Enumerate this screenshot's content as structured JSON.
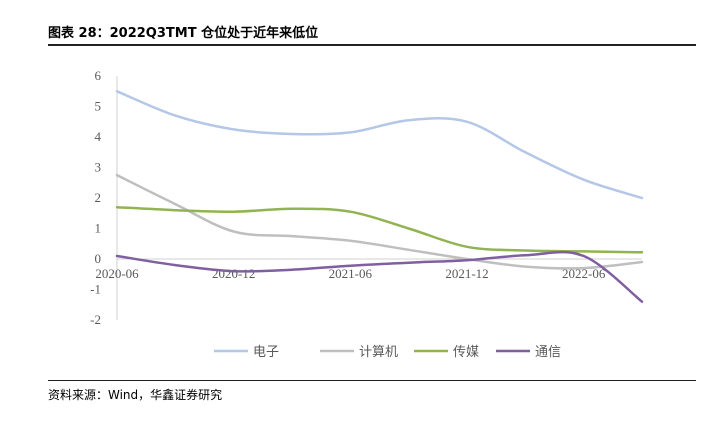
{
  "header": {
    "title": "图表 28：2022Q3TMT 仓位处于近年来低位"
  },
  "footer": {
    "source": "资料来源：Wind，华鑫证券研究"
  },
  "chart_data": {
    "type": "line",
    "title": "图表 28：2022Q3TMT 仓位处于近年来低位",
    "xlabel": "",
    "ylabel": "",
    "x": [
      "2020-06",
      "2020-09",
      "2020-12",
      "2021-03",
      "2021-06",
      "2021-09",
      "2021-12",
      "2022-03",
      "2022-06",
      "2022-09"
    ],
    "x_tick_labels": [
      "2020-06",
      "2020-12",
      "2021-06",
      "2021-12",
      "2022-06"
    ],
    "y_ticks": [
      "6",
      "5",
      "4",
      "3",
      "2",
      "1",
      "0",
      "-1",
      "-2"
    ],
    "ylim": [
      -2,
      6
    ],
    "grid": false,
    "legend_position": "bottom",
    "series": [
      {
        "name": "电子",
        "color": "#b4c7e7",
        "values": [
          5.5,
          4.7,
          4.25,
          4.1,
          4.15,
          4.55,
          4.5,
          3.5,
          2.6,
          2.0
        ]
      },
      {
        "name": "计算机",
        "color": "#bfbfbf",
        "values": [
          2.75,
          1.8,
          0.9,
          0.75,
          0.6,
          0.3,
          0.0,
          -0.25,
          -0.3,
          -0.1
        ]
      },
      {
        "name": "传媒",
        "color": "#92b351",
        "values": [
          1.7,
          1.6,
          1.55,
          1.65,
          1.55,
          1.0,
          0.4,
          0.28,
          0.25,
          0.22
        ]
      },
      {
        "name": "通信",
        "color": "#7f5f9f",
        "values": [
          0.1,
          -0.2,
          -0.4,
          -0.35,
          -0.22,
          -0.12,
          -0.04,
          0.12,
          0.1,
          -1.4
        ]
      }
    ]
  }
}
